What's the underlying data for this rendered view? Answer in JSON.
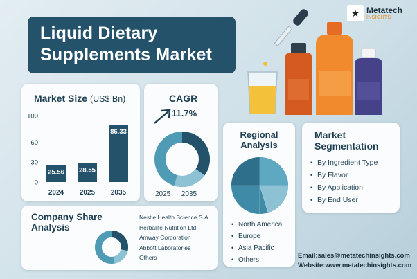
{
  "title": {
    "line1": "Liquid Dietary",
    "line2": "Supplements Market"
  },
  "logo": {
    "name": "Metatech",
    "tagline": "INSIGHTS"
  },
  "market_size": {
    "title": "Market Size",
    "unit": "(US$ Bn)"
  },
  "cagr": {
    "title": "CAGR",
    "value": "11.7%",
    "period": "2025 → 2035"
  },
  "regional": {
    "title_line1": "Regional",
    "title_line2": "Analysis",
    "items": [
      "North America",
      "Europe",
      "Asia Pacific",
      "Others"
    ]
  },
  "segmentation": {
    "title_line1": "Market",
    "title_line2": "Segmentation",
    "items": [
      "By Ingredient Type",
      "By Flavor",
      "By Application",
      "By End User"
    ]
  },
  "company_share": {
    "title_line1": "Company Share",
    "title_line2": "Analysis",
    "items": [
      "Nestle Health Science S.A.",
      "Herbalife Nutrition Ltd.",
      "Amway Corporation",
      "Abbott Laboratories",
      "Others"
    ]
  },
  "contact": {
    "email": "Email:sales@metatechinsights.com",
    "website": "Website:www.metatechinsights.com"
  },
  "colors": {
    "navy": "#25526b",
    "teal": "#4f9bb5",
    "light_teal": "#8cc2d3",
    "orange": "#e66b24"
  },
  "chart_data": [
    {
      "type": "bar",
      "categories": [
        "2024",
        "2025",
        "2035"
      ],
      "values": [
        25.56,
        28.55,
        86.33
      ],
      "ylim": [
        0,
        100
      ],
      "yticks": [
        0,
        30,
        60,
        100
      ],
      "title": "Market Size",
      "ylabel": "(US$ Bn)"
    }
  ]
}
